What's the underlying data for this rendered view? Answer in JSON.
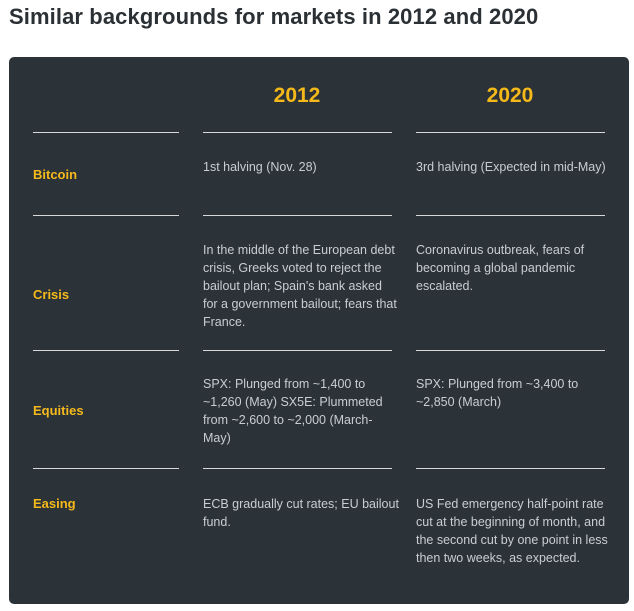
{
  "title": "Similar backgrounds for markets in 2012 and 2020",
  "columns": [
    "2012",
    "2020"
  ],
  "rows": [
    {
      "label": "Bitcoin",
      "c2012": "1st halving (Nov. 28)",
      "c2020": "3rd halving (Expected in mid-May)"
    },
    {
      "label": "Crisis",
      "c2012": "In the middle of the European debt crisis, Greeks voted to reject the bailout plan; Spain's bank asked for a government bailout; fears that France.",
      "c2020": "Coronavirus outbreak, fears of becoming a global pandemic escalated."
    },
    {
      "label": "Equities",
      "c2012": "SPX: Plunged from ~1,400 to ~1,260 (May) SX5E: Plummeted from ~2,600 to ~2,000 (March-May)",
      "c2020": "SPX: Plunged from ~3,400 to ~2,850 (March)"
    },
    {
      "label": "Easing",
      "c2012": "ECB gradually cut rates; EU bailout fund.",
      "c2020": "US Fed emergency half-point rate cut at the beginning of month, and the second cut by one point in less then two weeks, as expected."
    }
  ],
  "colors": {
    "panel_background": "#2b3339",
    "accent": "#f5b91a",
    "body_text": "#c9cdd1",
    "title_text": "#2b3035"
  }
}
